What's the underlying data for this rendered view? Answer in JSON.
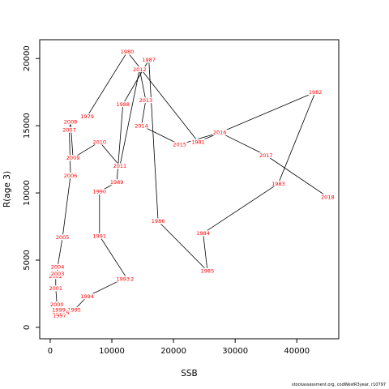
{
  "chart_data": {
    "type": "line",
    "xlabel": "SSB",
    "ylabel": "R(age 3)",
    "xlim": [
      -1700,
      46800
    ],
    "ylim": [
      -850,
      21400
    ],
    "x_ticks": [
      0,
      10000,
      20000,
      30000,
      40000
    ],
    "y_ticks": [
      0,
      5000,
      10000,
      15000,
      20000
    ],
    "grid": false,
    "line_color": "#000000",
    "label_color": "#ff0000",
    "points": [
      {
        "year": "1979",
        "ssb": 6000,
        "r": 15700
      },
      {
        "year": "1980",
        "ssb": 12500,
        "r": 20500
      },
      {
        "year": "1981",
        "ssb": 24000,
        "r": 13800
      },
      {
        "year": "1982",
        "ssb": 43000,
        "r": 17500
      },
      {
        "year": "1983",
        "ssb": 37000,
        "r": 10700
      },
      {
        "year": "1984",
        "ssb": 24800,
        "r": 7000
      },
      {
        "year": "1985",
        "ssb": 25500,
        "r": 4200
      },
      {
        "year": "1986",
        "ssb": 17500,
        "r": 7900
      },
      {
        "year": "1987",
        "ssb": 16000,
        "r": 19900
      },
      {
        "year": "1988",
        "ssb": 11800,
        "r": 16600
      },
      {
        "year": "1989",
        "ssb": 10800,
        "r": 10800
      },
      {
        "year": "1990",
        "ssb": 8000,
        "r": 10100
      },
      {
        "year": "1991",
        "ssb": 8000,
        "r": 6800
      },
      {
        "year": "1992",
        "ssb": 12500,
        "r": 3600
      },
      {
        "year": "1993",
        "ssb": 11800,
        "r": 3600
      },
      {
        "year": "1994",
        "ssb": 6000,
        "r": 2300
      },
      {
        "year": "1995",
        "ssb": 3900,
        "r": 1300
      },
      {
        "year": "1996",
        "ssb": 2000,
        "r": 1100
      },
      {
        "year": "1997",
        "ssb": 1500,
        "r": 900
      },
      {
        "year": "1998",
        "ssb": 1400,
        "r": 1200
      },
      {
        "year": "1999",
        "ssb": 1400,
        "r": 1300
      },
      {
        "year": "2000",
        "ssb": 1100,
        "r": 1700
      },
      {
        "year": "2001",
        "ssb": 900,
        "r": 2900
      },
      {
        "year": "2002",
        "ssb": 900,
        "r": 3800
      },
      {
        "year": "2003",
        "ssb": 1200,
        "r": 4000
      },
      {
        "year": "2004",
        "ssb": 1200,
        "r": 4500
      },
      {
        "year": "2005",
        "ssb": 2000,
        "r": 6700
      },
      {
        "year": "2006",
        "ssb": 3300,
        "r": 11300
      },
      {
        "year": "2007",
        "ssb": 3100,
        "r": 14700
      },
      {
        "year": "2008",
        "ssb": 3300,
        "r": 15300
      },
      {
        "year": "2009",
        "ssb": 3700,
        "r": 12600
      },
      {
        "year": "2010",
        "ssb": 8000,
        "r": 13800
      },
      {
        "year": "2011",
        "ssb": 11300,
        "r": 12000
      },
      {
        "year": "2012",
        "ssb": 14500,
        "r": 19200
      },
      {
        "year": "2013",
        "ssb": 15500,
        "r": 16900
      },
      {
        "year": "2014",
        "ssb": 14800,
        "r": 15000
      },
      {
        "year": "2015",
        "ssb": 21000,
        "r": 13600
      },
      {
        "year": "2016",
        "ssb": 27500,
        "r": 14500
      },
      {
        "year": "2017",
        "ssb": 35000,
        "r": 12800
      },
      {
        "year": "2018",
        "ssb": 45000,
        "r": 9700
      }
    ]
  },
  "credit": "stockassessment.org, codWestR3year, r10797"
}
